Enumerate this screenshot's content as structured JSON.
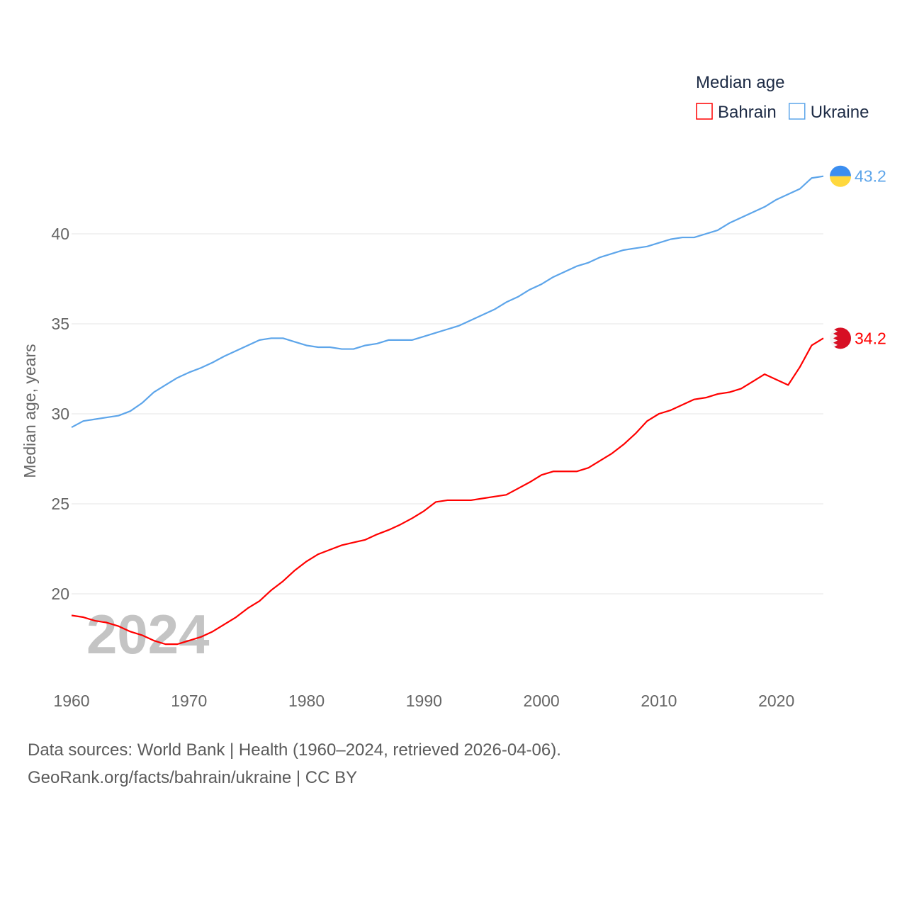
{
  "chart_data": {
    "type": "line",
    "title": "",
    "legend_title": "Median age",
    "legend_position": "top-right",
    "xlabel": "",
    "ylabel": "Median age, years",
    "xlim": [
      1960,
      2024
    ],
    "ylim": [
      16,
      44
    ],
    "x_ticks": [
      1960,
      1970,
      1980,
      1990,
      2000,
      2010,
      2020
    ],
    "y_ticks": [
      20,
      25,
      30,
      35,
      40
    ],
    "grid": true,
    "year_watermark": "2024",
    "x": [
      1960,
      1961,
      1962,
      1963,
      1964,
      1965,
      1966,
      1967,
      1968,
      1969,
      1970,
      1971,
      1972,
      1973,
      1974,
      1975,
      1976,
      1977,
      1978,
      1979,
      1980,
      1981,
      1982,
      1983,
      1984,
      1985,
      1986,
      1987,
      1988,
      1989,
      1990,
      1991,
      1992,
      1993,
      1994,
      1995,
      1996,
      1997,
      1998,
      1999,
      2000,
      2001,
      2002,
      2003,
      2004,
      2005,
      2006,
      2007,
      2008,
      2009,
      2010,
      2011,
      2012,
      2013,
      2014,
      2015,
      2016,
      2017,
      2018,
      2019,
      2020,
      2021,
      2022,
      2023,
      2024
    ],
    "series": [
      {
        "name": "Bahrain",
        "color": "#ff0000",
        "end_label": "34.2",
        "values": [
          18.8,
          18.7,
          18.5,
          18.4,
          18.2,
          17.9,
          17.7,
          17.4,
          17.2,
          17.2,
          17.4,
          17.6,
          17.9,
          18.3,
          18.7,
          19.2,
          19.6,
          20.2,
          20.7,
          21.3,
          21.8,
          22.2,
          22.45,
          22.7,
          22.85,
          23.0,
          23.3,
          23.55,
          23.85,
          24.2,
          24.6,
          25.1,
          25.2,
          25.2,
          25.2,
          25.3,
          25.4,
          25.5,
          25.85,
          26.2,
          26.6,
          26.8,
          26.8,
          26.8,
          27.0,
          27.4,
          27.8,
          28.3,
          28.9,
          29.6,
          30.0,
          30.2,
          30.5,
          30.8,
          30.9,
          31.1,
          31.2,
          31.4,
          31.8,
          32.2,
          31.9,
          31.6,
          32.6,
          33.8,
          34.2
        ]
      },
      {
        "name": "Ukraine",
        "color": "#5da5ea",
        "end_label": "43.2",
        "values": [
          29.25,
          29.6,
          29.7,
          29.8,
          29.9,
          30.15,
          30.6,
          31.2,
          31.6,
          32.0,
          32.3,
          32.55,
          32.85,
          33.2,
          33.5,
          33.8,
          34.1,
          34.2,
          34.2,
          34.0,
          33.8,
          33.7,
          33.7,
          33.6,
          33.6,
          33.8,
          33.9,
          34.1,
          34.1,
          34.1,
          34.3,
          34.5,
          34.7,
          34.9,
          35.2,
          35.5,
          35.8,
          36.2,
          36.5,
          36.9,
          37.2,
          37.6,
          37.9,
          38.2,
          38.4,
          38.7,
          38.9,
          39.1,
          39.2,
          39.3,
          39.5,
          39.7,
          39.8,
          39.8,
          40.0,
          40.2,
          40.6,
          40.9,
          41.2,
          41.5,
          41.9,
          42.2,
          42.5,
          43.1,
          43.2
        ]
      }
    ]
  },
  "footer": {
    "line1": "Data sources: World Bank | Health (1960–2024, retrieved 2026-04-06).",
    "line2": "GeoRank.org/facts/bahrain/ukraine | CC BY"
  }
}
